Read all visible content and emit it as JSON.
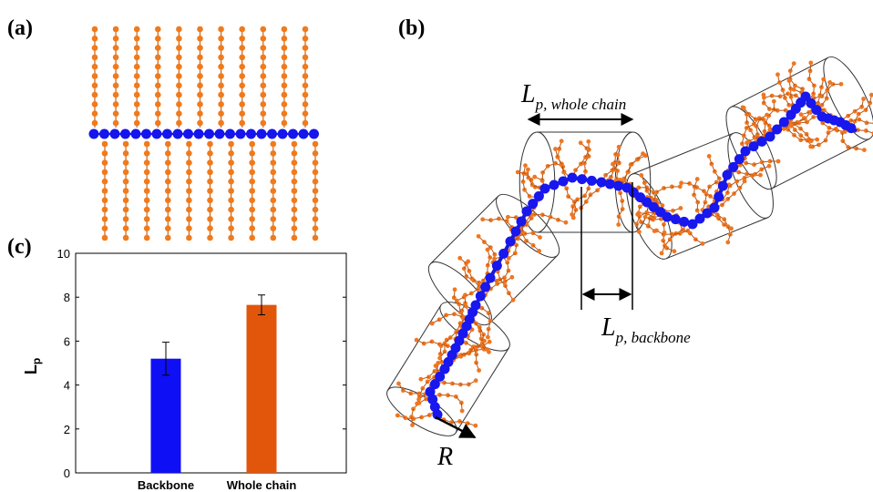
{
  "chart_data": {
    "type": "bar",
    "y_label": {
      "symbol": "L",
      "subscript": "p"
    },
    "categories": [
      "Backbone",
      "Whole chain"
    ],
    "values": [
      5.2,
      7.65
    ],
    "errors": [
      0.75,
      0.45
    ],
    "colors": [
      "#0f0ff5",
      "#e2560c"
    ],
    "ylim": [
      0,
      10
    ],
    "yticks": [
      0,
      2,
      4,
      6,
      8,
      10
    ]
  },
  "labels": {
    "a": "(a)",
    "b": "(b)",
    "c": "(c)",
    "whole_chain": {
      "symbol": "L",
      "subscript": "p, whole chain"
    },
    "backbone": {
      "symbol": "L",
      "subscript": "p, backbone"
    },
    "radius": "R"
  }
}
